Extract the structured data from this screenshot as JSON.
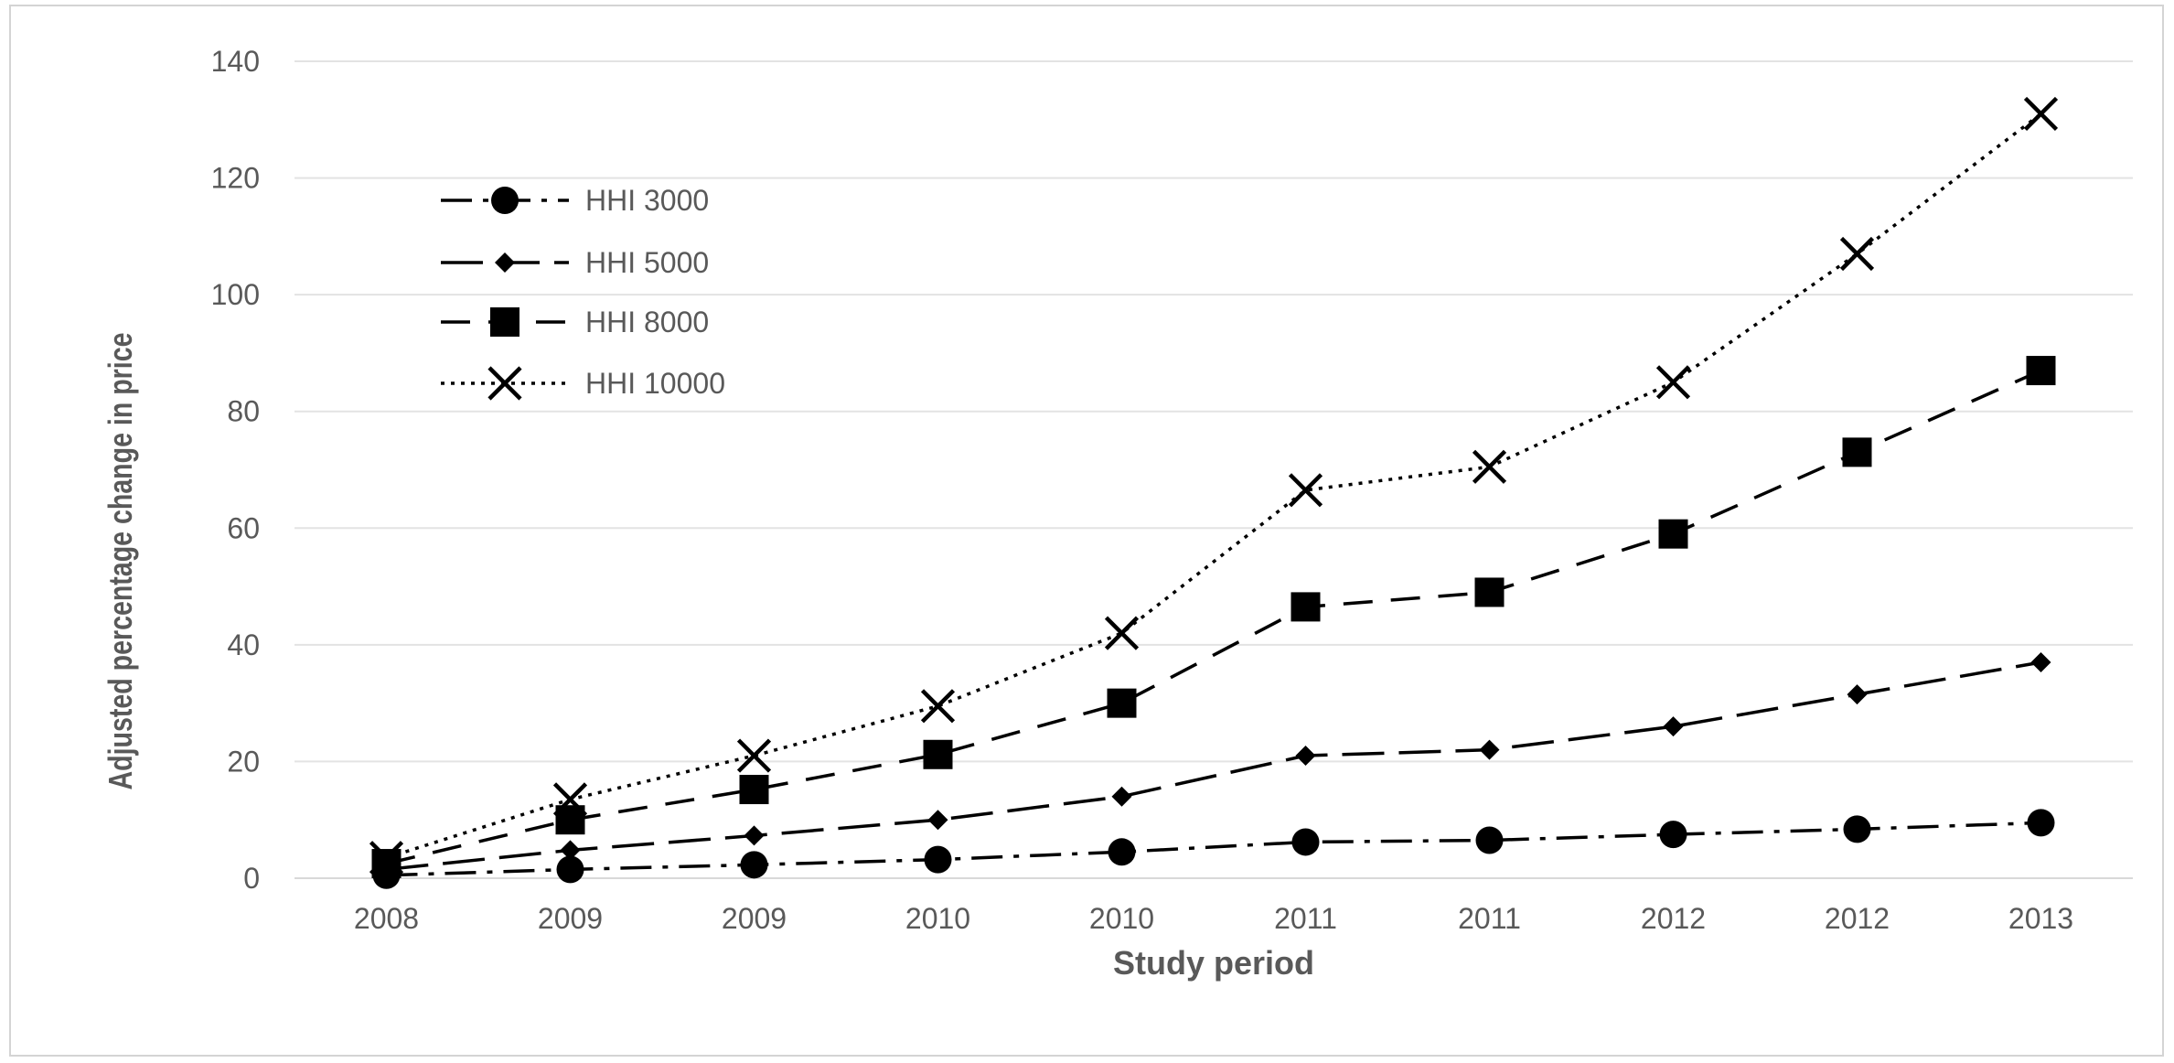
{
  "chart_data": {
    "type": "line",
    "title": "",
    "xlabel": "Study period",
    "ylabel": "Adjusted percentage change  in price",
    "categories": [
      "2008",
      "2009",
      "2009",
      "2010",
      "2010",
      "2011",
      "2011",
      "2012",
      "2012",
      "2013"
    ],
    "ylim": [
      0,
      140
    ],
    "yticks": [
      0,
      20,
      40,
      60,
      80,
      100,
      120,
      140
    ],
    "grid": true,
    "legend_position": "top-left",
    "series": [
      {
        "name": "HHI 3000",
        "marker": "circle",
        "dash": "dash-dot",
        "color": "#000000",
        "values": [
          0.5,
          1.5,
          2.3,
          3.2,
          4.5,
          6.2,
          6.5,
          7.5,
          8.4,
          9.5
        ]
      },
      {
        "name": "HHI 5000",
        "marker": "diamond",
        "dash": "long-dash",
        "color": "#000000",
        "values": [
          1.5,
          4.8,
          7.3,
          10.0,
          14.0,
          21.0,
          22.0,
          26.0,
          31.5,
          37.0
        ]
      },
      {
        "name": "HHI 8000",
        "marker": "square",
        "dash": "dash",
        "color": "#000000",
        "values": [
          2.5,
          10.0,
          15.2,
          21.2,
          30.0,
          46.5,
          49.0,
          59.0,
          73.0,
          87.0
        ]
      },
      {
        "name": "HHI 10000",
        "marker": "x",
        "dash": "dot",
        "color": "#000000",
        "values": [
          3.5,
          13.5,
          21.0,
          29.5,
          42.0,
          66.5,
          70.5,
          85.0,
          107.0,
          131.0
        ]
      }
    ]
  }
}
